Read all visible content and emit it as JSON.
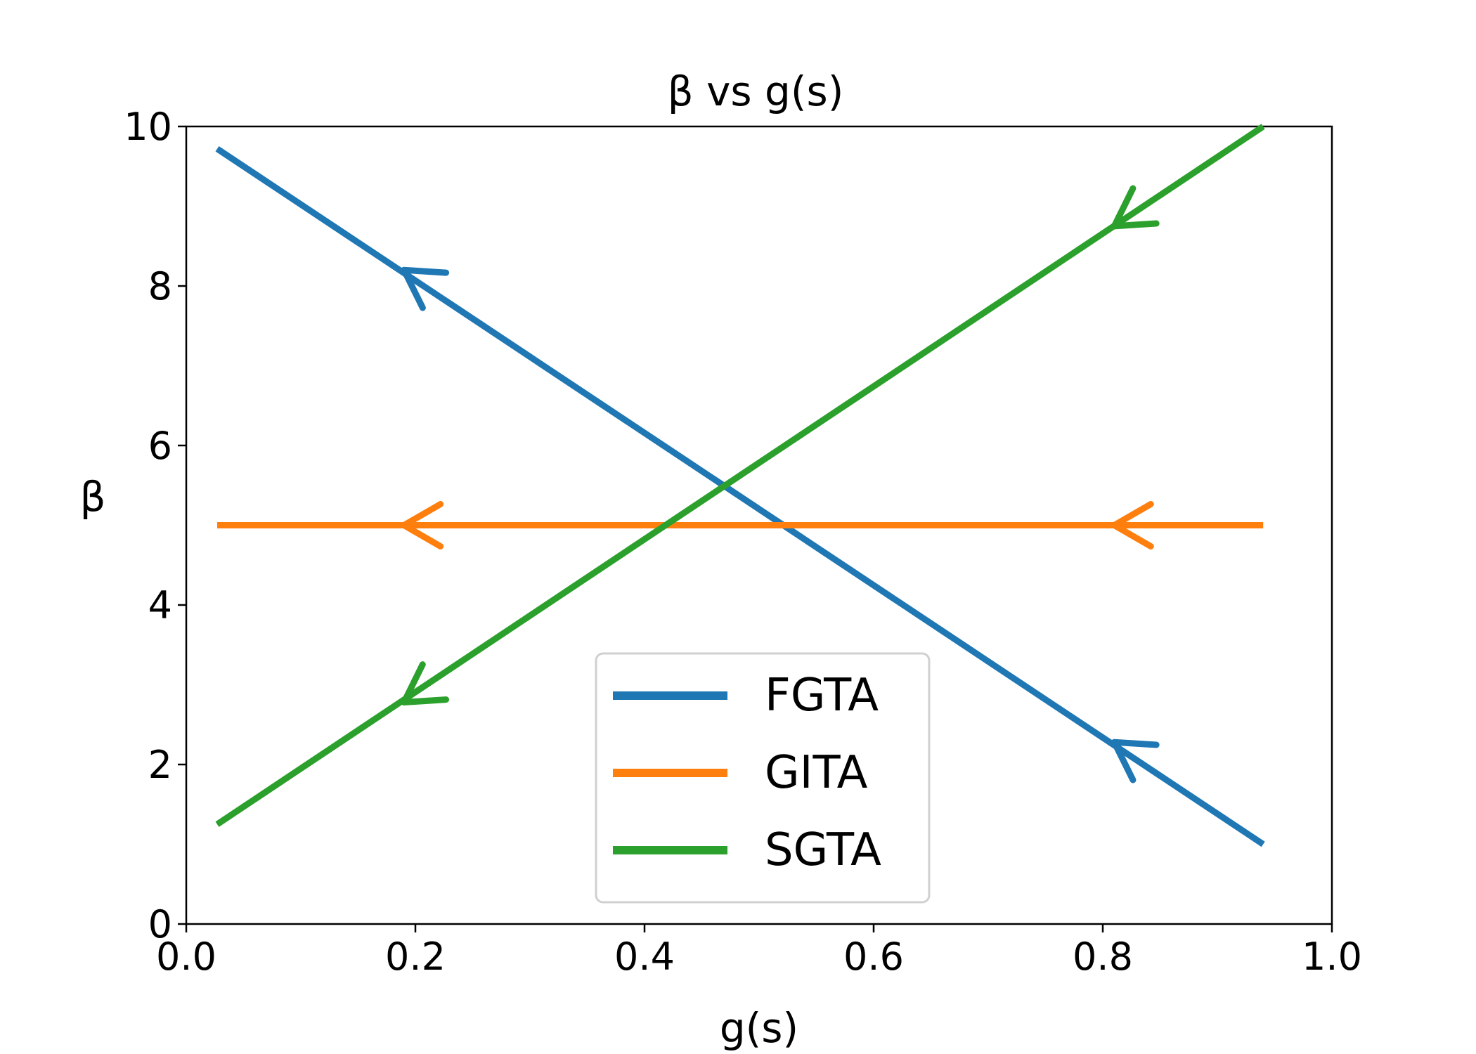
{
  "chart_data": {
    "type": "line",
    "title": "β vs g(s)",
    "xlabel": "g(s)",
    "ylabel": "β",
    "xlim": [
      0.0,
      1.0
    ],
    "ylim": [
      0,
      10
    ],
    "x_ticks": [
      "0.0",
      "0.2",
      "0.4",
      "0.6",
      "0.8",
      "1.0"
    ],
    "y_ticks": [
      "0",
      "2",
      "4",
      "6",
      "8",
      "10"
    ],
    "grid": false,
    "legend_position": "lower center",
    "series": [
      {
        "name": "FGTA",
        "color": "#1f77b4",
        "x": [
          0.027,
          0.94
        ],
        "y": [
          9.72,
          1.0
        ],
        "arrows": [
          [
            0.19,
            8.2
          ],
          [
            0.81,
            2.28
          ]
        ]
      },
      {
        "name": "GITA",
        "color": "#ff7f0e",
        "x": [
          0.027,
          0.94
        ],
        "y": [
          5.0,
          5.0
        ],
        "arrows": [
          [
            0.19,
            5.0
          ],
          [
            0.81,
            5.0
          ]
        ]
      },
      {
        "name": "SGTA",
        "color": "#2ca02c",
        "x": [
          0.027,
          0.94
        ],
        "y": [
          1.25,
          10.0
        ],
        "arrows": [
          [
            0.19,
            2.78
          ],
          [
            0.81,
            8.75
          ]
        ]
      }
    ]
  }
}
